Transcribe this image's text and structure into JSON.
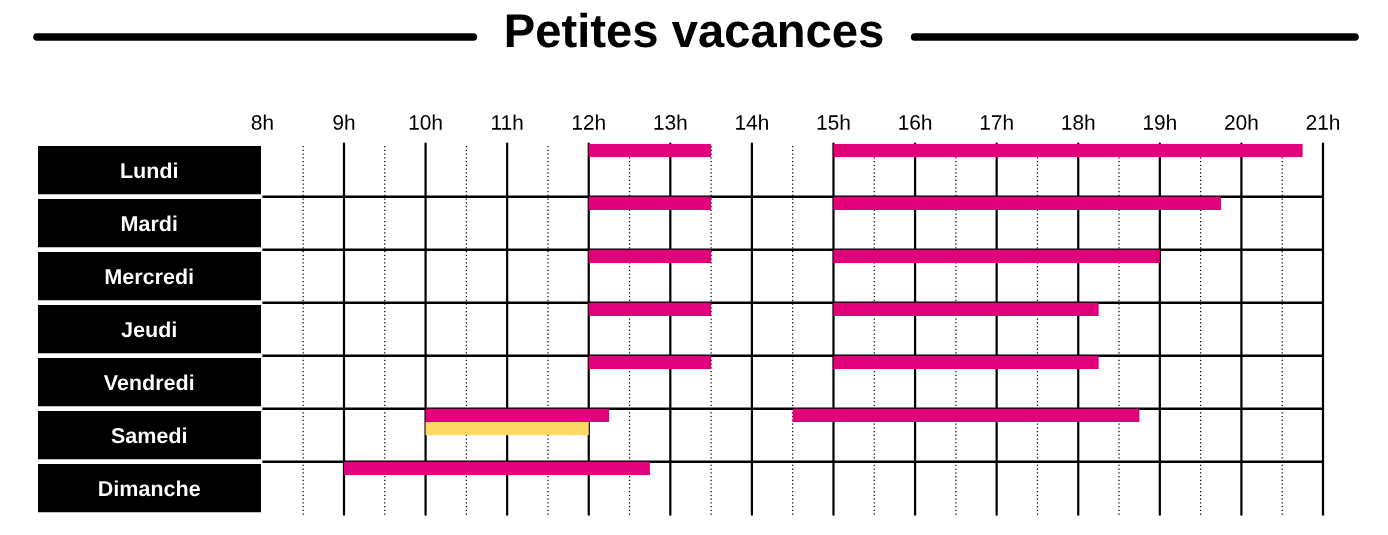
{
  "chart_data": {
    "type": "bar",
    "orientation": "horizontal",
    "title": "Petites vacances",
    "categories": [
      "Lundi",
      "Mardi",
      "Mercredi",
      "Jeudi",
      "Vendredi",
      "Samedi",
      "Dimanche"
    ],
    "series": [
      {
        "color": "#e2007a",
        "values": [
          1.5,
          1.5,
          1.5,
          1.5,
          1.5,
          2.25,
          3.75
        ],
        "base": [
          12,
          12,
          12,
          12,
          12,
          10,
          9
        ]
      },
      {
        "color": "#e2007a",
        "values": [
          5.75,
          4.75,
          4,
          3.25,
          3.25,
          4.25,
          null
        ],
        "base": [
          15,
          15,
          15,
          15,
          15,
          14.5,
          null
        ]
      },
      {
        "color": "#ffd966",
        "values": [
          null,
          null,
          null,
          null,
          null,
          2,
          null
        ],
        "base": [
          null,
          null,
          null,
          null,
          null,
          10,
          null
        ]
      }
    ],
    "xlim": [
      8,
      21
    ],
    "xticks": [
      {
        "value": 8,
        "label": "8h"
      },
      {
        "value": 8.5,
        "label": null
      },
      {
        "value": 9,
        "label": "9h"
      },
      {
        "value": 9.5,
        "label": null
      },
      {
        "value": 10,
        "label": "10h"
      },
      {
        "value": 10.5,
        "label": null
      },
      {
        "value": 11,
        "label": "11h"
      },
      {
        "value": 11.5,
        "label": null
      },
      {
        "value": 12,
        "label": "12h"
      },
      {
        "value": 12.5,
        "label": null
      },
      {
        "value": 13,
        "label": "13h"
      },
      {
        "value": 13.5,
        "label": null
      },
      {
        "value": 14,
        "label": "14h"
      },
      {
        "value": 14.5,
        "label": null
      },
      {
        "value": 15,
        "label": "15h"
      },
      {
        "value": 15.5,
        "label": null
      },
      {
        "value": 16,
        "label": "16h"
      },
      {
        "value": 16.5,
        "label": null
      },
      {
        "value": 17,
        "label": "17h"
      },
      {
        "value": 17.5,
        "label": null
      },
      {
        "value": 18,
        "label": "18h"
      },
      {
        "value": 18.5,
        "label": null
      },
      {
        "value": 19,
        "label": "19h"
      },
      {
        "value": 19.5,
        "label": null
      },
      {
        "value": 20,
        "label": "20h"
      },
      {
        "value": 20.5,
        "label": null
      },
      {
        "value": 21,
        "label": "21h"
      }
    ],
    "grid": true
  }
}
